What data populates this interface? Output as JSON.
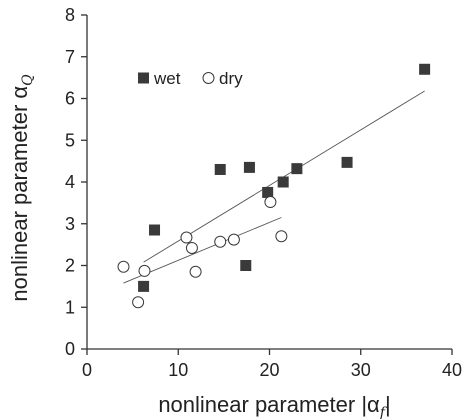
{
  "chart_data": {
    "type": "scatter",
    "xlabel": "nonlinear parameter |α",
    "xlabel_sub": "f",
    "ylabel": "nonlinear parameter α",
    "ylabel_sub": "Q",
    "xlim": [
      0,
      40
    ],
    "ylim": [
      0,
      8
    ],
    "xticks": [
      "0",
      "10",
      "20",
      "30",
      "40"
    ],
    "yticks": [
      "0",
      "1",
      "2",
      "3",
      "4",
      "5",
      "6",
      "7",
      "8"
    ],
    "grid": false,
    "legend_position": "top-left",
    "series": [
      {
        "name": "wet",
        "marker": "filled-square",
        "color": "#3a3a3a",
        "points": [
          [
            6.2,
            1.5
          ],
          [
            7.4,
            2.85
          ],
          [
            14.6,
            4.3
          ],
          [
            17.4,
            2.0
          ],
          [
            17.8,
            4.35
          ],
          [
            19.8,
            3.75
          ],
          [
            21.5,
            4.0
          ],
          [
            23.0,
            4.32
          ],
          [
            28.5,
            4.47
          ],
          [
            37.0,
            6.7
          ]
        ],
        "trendline": {
          "x": [
            6.2,
            37.0
          ],
          "y": [
            2.08,
            6.18
          ]
        }
      },
      {
        "name": "dry",
        "marker": "open-circle",
        "color": "#3a3a3a",
        "points": [
          [
            4.0,
            1.97
          ],
          [
            5.6,
            1.12
          ],
          [
            6.3,
            1.87
          ],
          [
            10.9,
            2.67
          ],
          [
            11.5,
            2.42
          ],
          [
            11.9,
            1.85
          ],
          [
            14.6,
            2.57
          ],
          [
            16.1,
            2.62
          ],
          [
            20.1,
            3.52
          ],
          [
            21.3,
            2.7
          ]
        ],
        "trendline": {
          "x": [
            4.0,
            21.3
          ],
          "y": [
            1.58,
            3.15
          ]
        }
      }
    ]
  }
}
